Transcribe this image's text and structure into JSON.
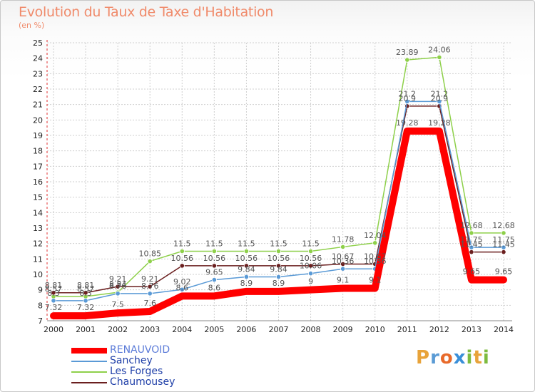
{
  "title": "Evolution du Taux de Taxe d'Habitation",
  "subtitle": "(en %)",
  "logo": {
    "text": "Proxiti",
    "colors": [
      "#e8a33a",
      "#5b9bd5",
      "#e86a2a",
      "#3a8fd8",
      "#7dbb3f",
      "#e8a33a",
      "#7dbb3f"
    ]
  },
  "chart_data": {
    "type": "line",
    "x": [
      "2000",
      "2001",
      "2002",
      "2003",
      "2004",
      "2005",
      "2006",
      "2007",
      "2008",
      "2009",
      "2010",
      "2011",
      "2012",
      "2013",
      "2014"
    ],
    "ylim": [
      7,
      25
    ],
    "yticks": [
      7,
      8,
      9,
      10,
      11,
      12,
      13,
      14,
      15,
      16,
      17,
      18,
      19,
      20,
      21,
      22,
      23,
      24,
      25
    ],
    "grid": true,
    "legend_position": "bottom-left",
    "series": [
      {
        "name": "Les Forges",
        "color": "#8ed04a",
        "values": [
          8.57,
          8.57,
          8.84,
          10.85,
          11.5,
          11.5,
          11.5,
          11.5,
          11.5,
          11.78,
          12.04,
          23.89,
          24.06,
          12.68,
          12.68
        ],
        "labels": [
          "8.57",
          "8.57",
          "8.84",
          "10.85",
          "11.5",
          "11.5",
          "11.5",
          "11.5",
          "11.5",
          "11.78",
          "12.04",
          "23.89",
          "24.06",
          "12.68",
          "12.68"
        ]
      },
      {
        "name": "Chaumousey",
        "color": "#6b1f1f",
        "values": [
          8.81,
          8.81,
          9.21,
          9.21,
          10.56,
          10.56,
          10.56,
          10.56,
          10.56,
          10.67,
          10.67,
          20.9,
          20.9,
          11.45,
          11.45
        ],
        "labels": [
          "8.81",
          "8.81",
          "9.21",
          "9.21",
          "10.56",
          "10.56",
          "10.56",
          "10.56",
          "10.56",
          "10.67",
          "10.67",
          "20.9",
          "20.9",
          "11.45",
          "11.45"
        ]
      },
      {
        "name": "Sanchey",
        "color": "#5a9ad6",
        "values": [
          8.3,
          8.3,
          8.76,
          8.76,
          9.02,
          9.65,
          9.84,
          9.84,
          10.06,
          10.36,
          10.36,
          21.2,
          21.2,
          11.75,
          11.75
        ],
        "labels": [
          "8.3",
          "8.3",
          "8.76",
          "8.76",
          "9.02",
          "9.65",
          "9.84",
          "9.84",
          "10.06",
          "10.36",
          "10.36",
          "21.2",
          "21.2",
          "11.75",
          "11.75"
        ]
      },
      {
        "name": "RENAUVOID",
        "color": "#ff0000",
        "values": [
          7.32,
          7.32,
          7.5,
          7.6,
          8.6,
          8.6,
          8.9,
          8.9,
          9.0,
          9.1,
          9.1,
          19.28,
          19.28,
          9.65,
          9.65
        ],
        "labels": [
          "7.32",
          "7.32",
          "7.5",
          "7.6",
          "8.6",
          "8.6",
          "8.9",
          "8.9",
          "9",
          "9.1",
          "9.1",
          "19.28",
          "19.28",
          "9.65",
          "9.65"
        ]
      }
    ]
  },
  "legend": [
    {
      "name": "RENAUVOID",
      "color": "#ff0000",
      "text_color": "#5b7bd8"
    },
    {
      "name": "Sanchey",
      "color": "#5a9ad6",
      "text_color": "#1f3fa8"
    },
    {
      "name": "Les Forges",
      "color": "#8ed04a",
      "text_color": "#1f3fa8"
    },
    {
      "name": "Chaumousey",
      "color": "#6b1f1f",
      "text_color": "#1f3fa8"
    }
  ]
}
